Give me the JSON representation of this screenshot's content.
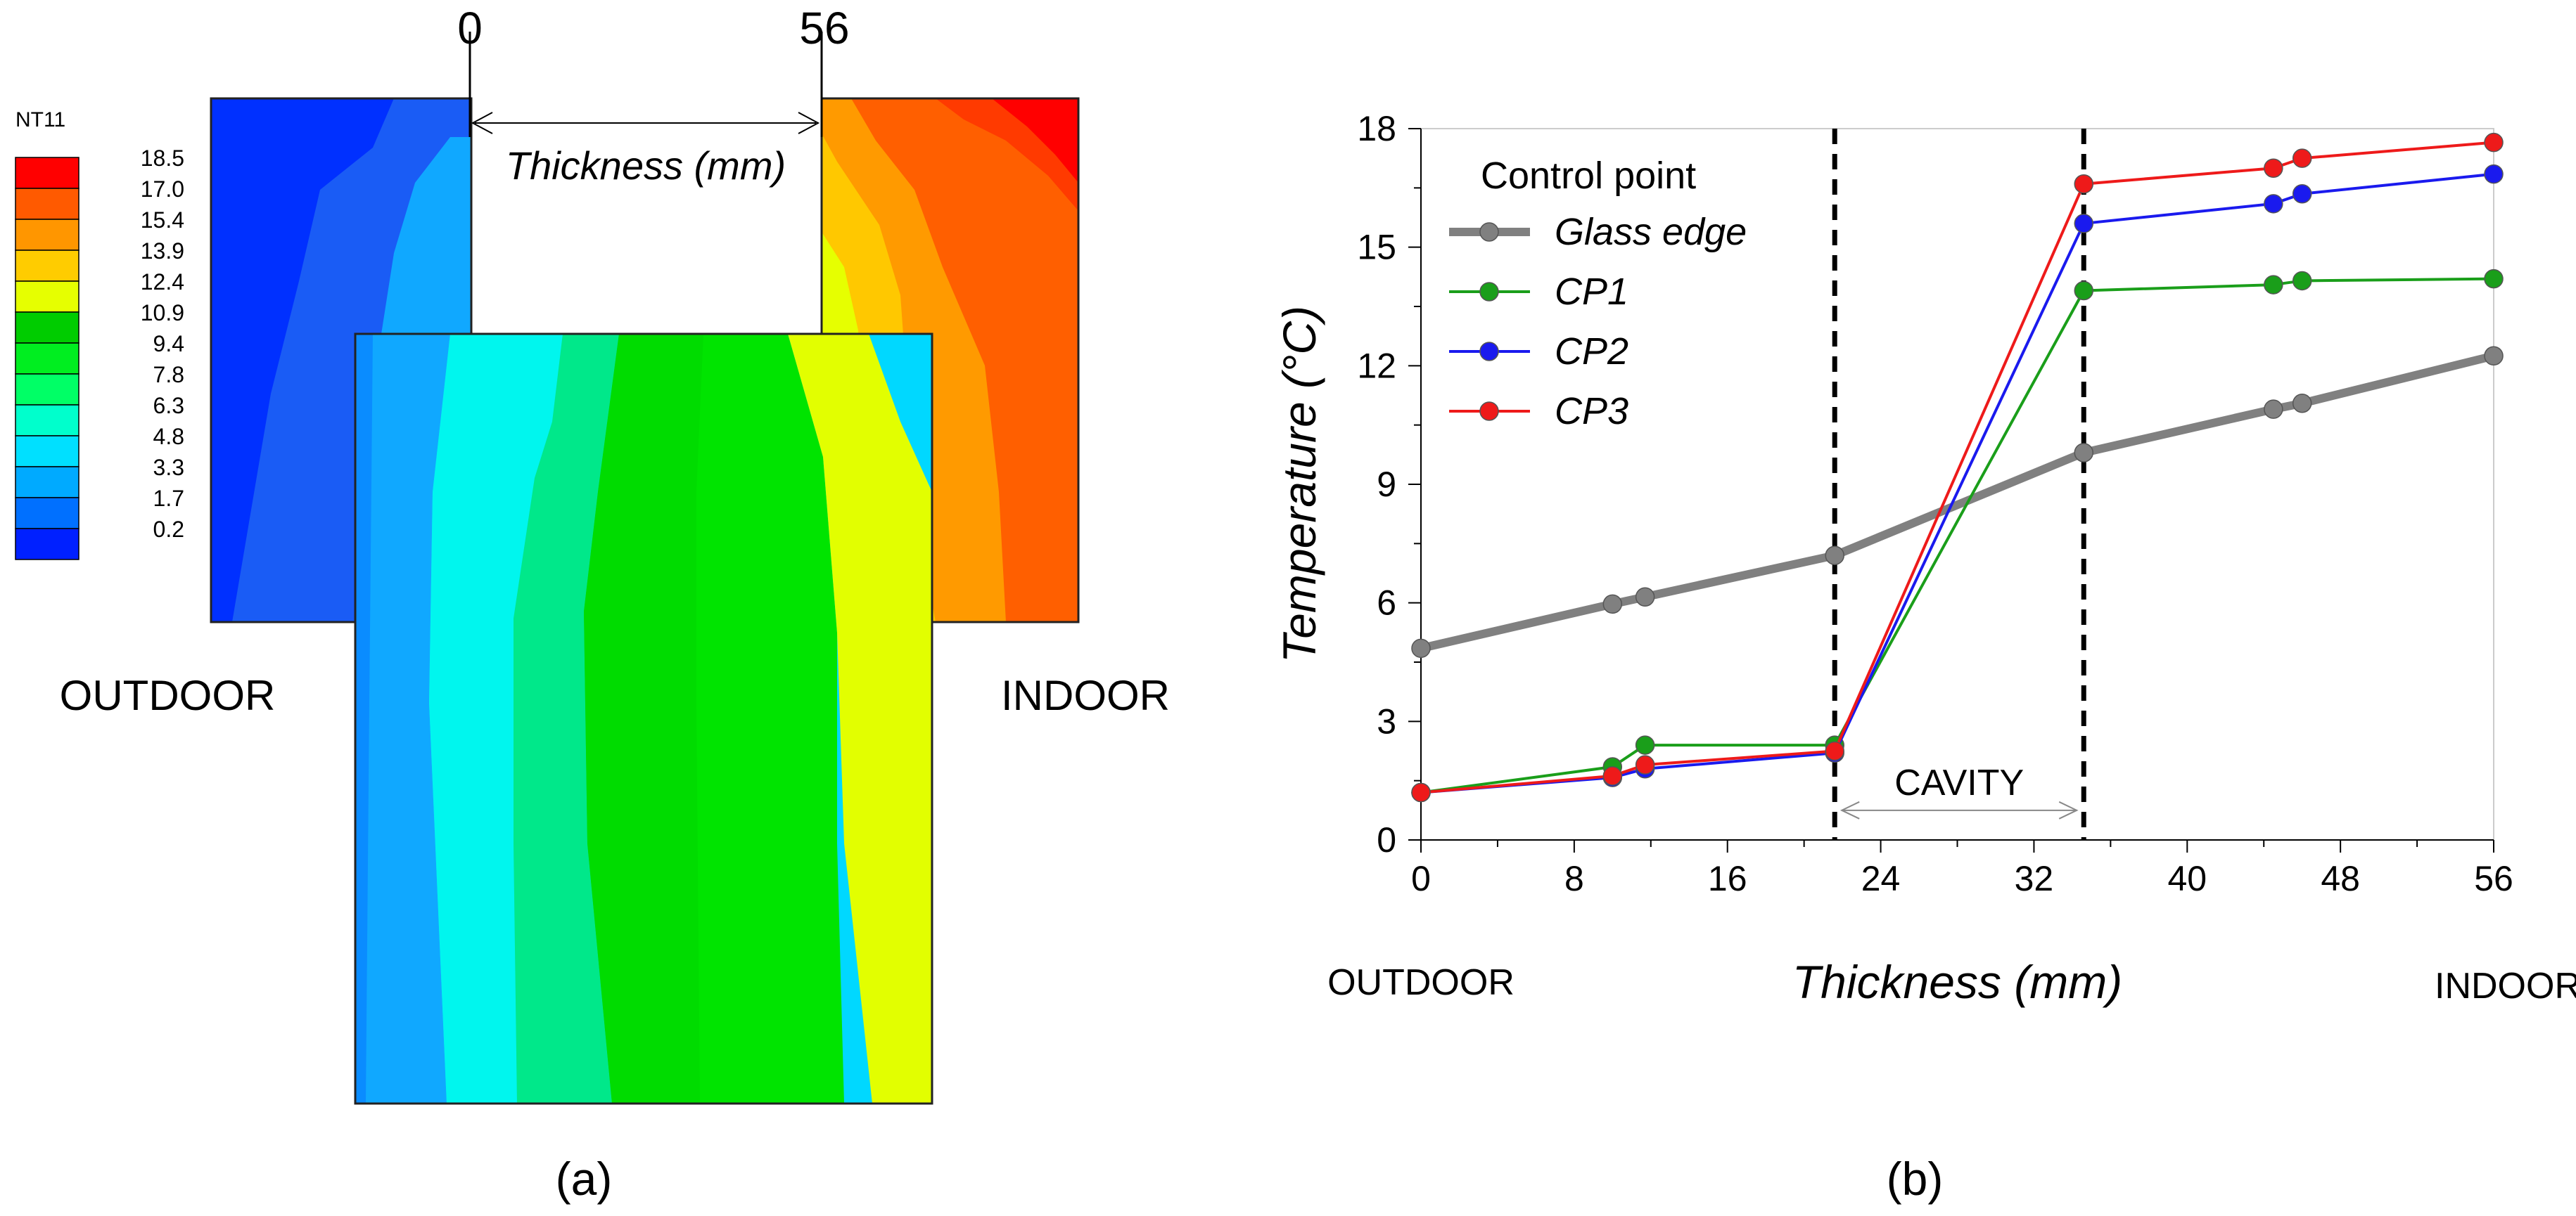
{
  "panel_a": {
    "caption": "(a)",
    "top_left_label": "0",
    "top_right_label": "56",
    "dimension_label": "Thickness (mm)",
    "outdoor_label": "OUTDOOR",
    "indoor_label": "INDOOR",
    "legend": {
      "title": "NT11",
      "levels": [
        {
          "value": "18.5",
          "color": "#ff0000"
        },
        {
          "value": "17.0",
          "color": "#ff5a00"
        },
        {
          "value": "15.4",
          "color": "#ff9600"
        },
        {
          "value": "13.9",
          "color": "#ffcc00"
        },
        {
          "value": "12.4",
          "color": "#e6ff00"
        },
        {
          "value": "10.9",
          "color": "#00cc00"
        },
        {
          "value": "9.4",
          "color": "#00ee20"
        },
        {
          "value": "7.8",
          "color": "#00ff66"
        },
        {
          "value": "6.3",
          "color": "#00ffcc"
        },
        {
          "value": "4.8",
          "color": "#00e0ff"
        },
        {
          "value": "3.3",
          "color": "#00aaff"
        },
        {
          "value": "1.7",
          "color": "#0070ff"
        },
        {
          "value": "0.2",
          "color": "#0020ff"
        }
      ]
    }
  },
  "panel_b": {
    "caption": "(b)",
    "cavity_label": "CAVITY",
    "outdoor_label": "OUTDOOR",
    "indoor_label": "INDOOR"
  },
  "chart_data": {
    "type": "line",
    "xlabel": "Thickness (mm)",
    "ylabel": "Temperature (°C)",
    "xlim": [
      0,
      56
    ],
    "ylim": [
      0,
      18
    ],
    "xticks": [
      "0",
      "8",
      "16",
      "24",
      "32",
      "40",
      "48",
      "56"
    ],
    "yticks": [
      "0",
      "3",
      "6",
      "9",
      "12",
      "15",
      "18"
    ],
    "legend_title": "Control point",
    "legend_position": "top-left",
    "grid": false,
    "cavity_bounds": [
      21.6,
      34.6
    ],
    "series": [
      {
        "name": "Glass edge",
        "color": "#808080",
        "x": [
          0,
          10,
          11.7,
          21.6,
          34.6,
          44.5,
          46,
          56
        ],
        "y": [
          4.85,
          5.97,
          6.15,
          7.2,
          9.8,
          10.9,
          11.05,
          12.25
        ]
      },
      {
        "name": "CP1",
        "color": "#1a9e1a",
        "x": [
          0,
          10,
          11.7,
          21.6,
          34.6,
          44.5,
          46,
          56
        ],
        "y": [
          1.2,
          1.85,
          2.4,
          2.4,
          13.9,
          14.05,
          14.15,
          14.2
        ]
      },
      {
        "name": "CP2",
        "color": "#1a1aee",
        "x": [
          0,
          10,
          11.7,
          21.6,
          34.6,
          44.5,
          46,
          56
        ],
        "y": [
          1.2,
          1.58,
          1.8,
          2.2,
          15.6,
          16.1,
          16.35,
          16.85
        ]
      },
      {
        "name": "CP3",
        "color": "#ee1a1a",
        "x": [
          0,
          10,
          11.7,
          21.6,
          34.6,
          44.5,
          46,
          56
        ],
        "y": [
          1.2,
          1.62,
          1.9,
          2.25,
          16.6,
          17.0,
          17.25,
          17.65
        ]
      }
    ]
  }
}
